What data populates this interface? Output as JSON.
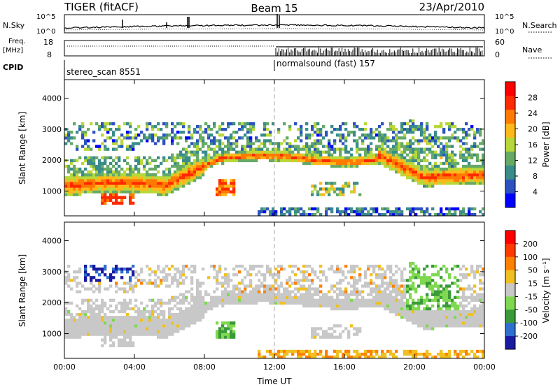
{
  "header": {
    "radar": "TIGER (fitACF)",
    "beam": "Beam 15",
    "date": "23/Apr/2010"
  },
  "info_panels": {
    "nsky_label": "N.Sky",
    "nsearch_label": "N.Search",
    "freq_label_line1": "Freq.",
    "freq_label_line2": "[MHz]",
    "nave_label": "Nave",
    "cpid_label": "CPID",
    "noise_ticks": [
      "10^5",
      "10^0"
    ],
    "freq_ticks": [
      "18",
      "8"
    ],
    "nave_ticks": [
      "60",
      "0"
    ],
    "cpid_1": "stereo_scan 8551",
    "cpid_2": "normalsound (fast) 157"
  },
  "chart_data": [
    {
      "type": "heatmap",
      "panel": "power",
      "xlabel": "",
      "ylabel": "Slant Range [km]",
      "xlim": [
        0,
        24
      ],
      "ylim": [
        200,
        4600
      ],
      "yticks": [
        "1000",
        "2000",
        "3000",
        "4000"
      ],
      "colorbar_label": "Power [dB]",
      "colorbar_ticks": [
        "4",
        "8",
        "12",
        "16",
        "20",
        "24",
        "28"
      ],
      "colorbar_colors": [
        "#0000ff",
        "#2d52c0",
        "#3a8c8a",
        "#66aa66",
        "#b8d83a",
        "#ffb81a",
        "#ff7a00",
        "#ff2a00",
        "#ff0000"
      ],
      "marker_x": 12
    },
    {
      "type": "heatmap",
      "panel": "velocity",
      "xlabel": "Time UT",
      "ylabel": "Slant Range [km]",
      "xlim": [
        0,
        24
      ],
      "ylim": [
        200,
        4600
      ],
      "xticks": [
        "00:00",
        "04:00",
        "08:00",
        "12:00",
        "16:00",
        "20:00",
        "00:00"
      ],
      "yticks": [
        "1000",
        "2000",
        "3000",
        "4000"
      ],
      "colorbar_label": "Velocity [m s⁻¹]",
      "colorbar_ticks": [
        "200",
        "100",
        "50",
        "15",
        "-15",
        "-50",
        "-100",
        "-200"
      ],
      "colorbar_colors": [
        "#1a1aa0",
        "#2f6fd0",
        "#3a9a3a",
        "#7fd850",
        "#c8c8c8",
        "#f0c020",
        "#ff8000",
        "#ff3a00",
        "#ff0000"
      ],
      "marker_x": 12
    }
  ]
}
